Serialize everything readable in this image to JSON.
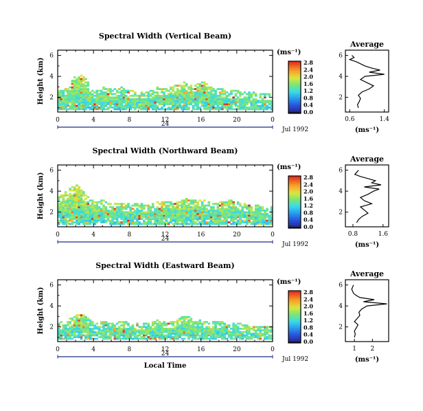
{
  "figure": {
    "xlabel_bottom": "Local Time",
    "date_label": "Jul 1992",
    "avg_title": "Average",
    "avg_unit": "(ms⁻¹)",
    "cbar_unit": "(ms⁻¹)",
    "ylabel": "Height (km)"
  },
  "chart_data": [
    {
      "type": "heatmap",
      "title": "Spectral Width (Vertical Beam)",
      "xlabel": "",
      "ylabel": "Height (km)",
      "xlim": [
        0,
        24
      ],
      "ylim": [
        0.6,
        6.5
      ],
      "x_ticks": [
        "0",
        "4",
        "8",
        "12",
        "16",
        "20",
        "0"
      ],
      "x_sub_label": "24",
      "y_ticks": [
        "2",
        "4",
        "6"
      ],
      "colorbar": {
        "unit": "(ms⁻¹)",
        "ticks": [
          "0.0",
          "0.4",
          "0.8",
          "1.2",
          "1.6",
          "2.0",
          "2.4",
          "2.8"
        ],
        "range": [
          0,
          2.8
        ]
      },
      "tops": [
        [
          0,
          2.6
        ],
        [
          1,
          2.8
        ],
        [
          2,
          4.4
        ],
        [
          3,
          3.8
        ],
        [
          4,
          2.5
        ],
        [
          5,
          2.9
        ],
        [
          6,
          2.7
        ],
        [
          7,
          2.9
        ],
        [
          8,
          2.6
        ],
        [
          9,
          2.5
        ],
        [
          10,
          2.5
        ],
        [
          11,
          2.9
        ],
        [
          12,
          2.8
        ],
        [
          13,
          3.1
        ],
        [
          14,
          3.5
        ],
        [
          15,
          3.0
        ],
        [
          16,
          3.6
        ],
        [
          17,
          3.0
        ],
        [
          18,
          2.8
        ],
        [
          19,
          2.6
        ],
        [
          20,
          2.6
        ],
        [
          21,
          2.5
        ],
        [
          22,
          2.4
        ],
        [
          23,
          2.4
        ],
        [
          24,
          2.4
        ]
      ],
      "avg_profile": {
        "xlabel": "(ms⁻¹)",
        "xlim": [
          0.5,
          1.5
        ],
        "x_ticks": [
          "0.6",
          "1.4"
        ],
        "x_tick_values": [
          0.6,
          1.4
        ],
        "ylim": [
          0.6,
          6.5
        ],
        "y_ticks": [
          "2",
          "4",
          "6"
        ],
        "heights": [
          1.0,
          1.3,
          1.6,
          1.9,
          2.2,
          2.5,
          2.8,
          3.1,
          3.4,
          3.7,
          4.0,
          4.2,
          4.4,
          4.6,
          4.8,
          5.0,
          5.2,
          5.4,
          5.6,
          5.8,
          6.0
        ],
        "values": [
          0.8,
          0.78,
          0.82,
          0.85,
          0.8,
          0.88,
          1.05,
          1.15,
          1.0,
          0.85,
          0.95,
          1.4,
          1.05,
          1.3,
          1.1,
          0.95,
          0.85,
          0.75,
          0.6,
          0.7,
          0.65
        ]
      }
    },
    {
      "type": "heatmap",
      "title": "Spectral Width (Northward Beam)",
      "xlabel": "",
      "ylabel": "Height (km)",
      "xlim": [
        0,
        24
      ],
      "ylim": [
        0.6,
        6.5
      ],
      "x_ticks": [
        "0",
        "4",
        "8",
        "12",
        "16",
        "20",
        "0"
      ],
      "x_sub_label": "24",
      "y_ticks": [
        "2",
        "4",
        "6"
      ],
      "colorbar": {
        "unit": "(ms⁻¹)",
        "ticks": [
          "0.0",
          "0.4",
          "0.8",
          "1.2",
          "1.6",
          "2.0",
          "2.4",
          "2.8"
        ],
        "range": [
          0,
          2.8
        ]
      },
      "tops": [
        [
          0,
          3.5
        ],
        [
          1,
          4.0
        ],
        [
          2,
          4.7
        ],
        [
          3,
          3.6
        ],
        [
          4,
          2.9
        ],
        [
          5,
          3.1
        ],
        [
          6,
          2.7
        ],
        [
          7,
          2.8
        ],
        [
          8,
          2.7
        ],
        [
          9,
          2.8
        ],
        [
          10,
          2.6
        ],
        [
          11,
          2.9
        ],
        [
          12,
          3.0
        ],
        [
          13,
          2.8
        ],
        [
          14,
          3.3
        ],
        [
          15,
          3.1
        ],
        [
          16,
          3.2
        ],
        [
          17,
          2.8
        ],
        [
          18,
          2.9
        ],
        [
          19,
          3.1
        ],
        [
          20,
          2.9
        ],
        [
          21,
          2.7
        ],
        [
          22,
          2.6
        ],
        [
          23,
          2.5
        ],
        [
          24,
          2.4
        ]
      ],
      "avg_profile": {
        "xlabel": "(ms⁻¹)",
        "xlim": [
          0.6,
          1.75
        ],
        "x_ticks": [
          "0.8",
          "1.6"
        ],
        "x_tick_values": [
          0.8,
          1.6
        ],
        "ylim": [
          0.6,
          6.5
        ],
        "y_ticks": [
          "2",
          "4",
          "6"
        ],
        "heights": [
          1.0,
          1.3,
          1.6,
          1.9,
          2.2,
          2.5,
          2.8,
          3.1,
          3.4,
          3.7,
          4.0,
          4.2,
          4.4,
          4.6,
          4.8,
          5.0,
          5.2,
          5.4,
          5.6,
          5.8,
          6.0
        ],
        "values": [
          0.9,
          0.95,
          1.05,
          1.2,
          1.1,
          1.0,
          1.3,
          1.1,
          1.0,
          1.2,
          1.35,
          1.5,
          1.1,
          1.55,
          1.3,
          1.4,
          1.2,
          1.0,
          0.85,
          0.9,
          0.95
        ]
      }
    },
    {
      "type": "heatmap",
      "title": "Spectral Width (Eastward Beam)",
      "xlabel": "Local Time",
      "ylabel": "Height (km)",
      "xlim": [
        0,
        24
      ],
      "ylim": [
        0.6,
        6.5
      ],
      "x_ticks": [
        "0",
        "4",
        "8",
        "12",
        "16",
        "20",
        "0"
      ],
      "x_sub_label": "24",
      "y_ticks": [
        "2",
        "4",
        "6"
      ],
      "colorbar": {
        "unit": "(ms⁻¹)",
        "ticks": [
          "0.0",
          "0.4",
          "0.8",
          "1.2",
          "1.6",
          "2.0",
          "2.4",
          "2.8"
        ],
        "range": [
          0,
          2.8
        ]
      },
      "tops": [
        [
          0,
          2.4
        ],
        [
          1,
          2.6
        ],
        [
          2,
          3.2
        ],
        [
          3,
          3.0
        ],
        [
          4,
          2.2
        ],
        [
          5,
          2.5
        ],
        [
          6,
          2.3
        ],
        [
          7,
          2.6
        ],
        [
          8,
          2.4
        ],
        [
          9,
          2.2
        ],
        [
          10,
          2.3
        ],
        [
          11,
          2.6
        ],
        [
          12,
          2.4
        ],
        [
          13,
          2.6
        ],
        [
          14,
          3.0
        ],
        [
          15,
          2.8
        ],
        [
          16,
          2.6
        ],
        [
          17,
          2.4
        ],
        [
          18,
          2.5
        ],
        [
          19,
          2.2
        ],
        [
          20,
          2.3
        ],
        [
          21,
          2.1
        ],
        [
          22,
          2.0
        ],
        [
          23,
          2.0
        ],
        [
          24,
          2.0
        ]
      ],
      "avg_profile": {
        "xlabel": "(ms⁻¹)",
        "xlim": [
          0.5,
          2.9
        ],
        "x_ticks": [
          "1",
          "2"
        ],
        "x_tick_values": [
          1,
          2
        ],
        "ylim": [
          0.6,
          6.5
        ],
        "y_ticks": [
          "2",
          "4",
          "6"
        ],
        "heights": [
          1.0,
          1.3,
          1.6,
          1.9,
          2.2,
          2.5,
          2.8,
          3.1,
          3.4,
          3.7,
          4.0,
          4.2,
          4.4,
          4.6,
          4.8,
          5.0,
          5.2,
          5.4,
          5.6,
          5.8,
          6.0
        ],
        "values": [
          1.0,
          1.05,
          1.0,
          1.1,
          1.2,
          1.0,
          1.15,
          1.3,
          1.25,
          1.4,
          1.7,
          2.8,
          1.5,
          2.1,
          1.3,
          1.1,
          0.95,
          0.9,
          0.85,
          0.9,
          0.95
        ]
      }
    }
  ]
}
